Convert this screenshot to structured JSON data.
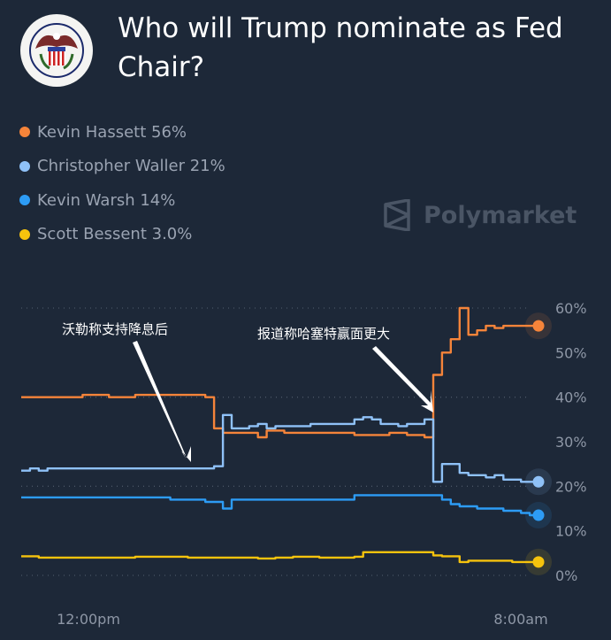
{
  "title": "Who will Trump nominate as Fed Chair?",
  "logo": {
    "name": "Board of Governors of the Federal Reserve System seal",
    "text": "BOARD OF GOVERNORS OF THE FEDERAL RESERVE SYSTEM"
  },
  "watermark": "Polymarket",
  "legend": [
    {
      "label": "Kevin Hassett 56%",
      "color": "#f5843a"
    },
    {
      "label": "Christopher Waller 21%",
      "color": "#8fc1f7"
    },
    {
      "label": "Kevin Warsh 14%",
      "color": "#2d9cf5"
    },
    {
      "label": "Scott Bessent 3.0%",
      "color": "#f6c30d"
    }
  ],
  "chart_data": {
    "type": "line",
    "xlabel": "",
    "ylabel": "",
    "x_tick_labels": [
      "12:00pm",
      "8:00am"
    ],
    "y_tick_labels": [
      "60%",
      "50%",
      "40%",
      "30%",
      "20%",
      "10%",
      "0%"
    ],
    "ylim": [
      0,
      60
    ],
    "grid": "dotted horizontal at 0%, 20%, 40%, 60%",
    "annotations": [
      "沃勒称支持降息后",
      "报道称哈塞特赢面更大"
    ],
    "series": [
      {
        "name": "Kevin Hassett",
        "color": "#f5843a",
        "values": [
          40,
          40,
          40,
          40,
          40,
          40,
          40,
          40.5,
          40.5,
          40.5,
          40,
          40,
          40,
          40.5,
          40.5,
          40.5,
          40.5,
          40.5,
          40.5,
          40.5,
          40.5,
          40,
          33,
          32,
          32,
          32,
          32,
          31,
          32.5,
          32.5,
          32,
          32,
          32,
          32,
          32,
          32,
          32,
          32,
          31.5,
          31.5,
          31.5,
          31.5,
          32,
          32,
          31.5,
          31.5,
          31,
          45,
          50,
          53,
          60,
          54,
          55,
          56,
          55.5,
          56,
          56,
          56,
          56,
          56
        ]
      },
      {
        "name": "Christopher Waller",
        "color": "#8fc1f7",
        "values": [
          23.5,
          24,
          23.5,
          24,
          24,
          24,
          24,
          24,
          24,
          24,
          24,
          24,
          24,
          24,
          24,
          24,
          24,
          24,
          24,
          24,
          24,
          24,
          24.5,
          36,
          33,
          33,
          33.5,
          34,
          33,
          33.5,
          33.5,
          33.5,
          33.5,
          34,
          34,
          34,
          34,
          34,
          35,
          35.5,
          35,
          34,
          34,
          33.5,
          34,
          34,
          35,
          21,
          25,
          25,
          23,
          22.5,
          22.5,
          22,
          22.5,
          21.5,
          21.5,
          21,
          21,
          21
        ]
      },
      {
        "name": "Kevin Warsh",
        "color": "#2d9cf5",
        "values": [
          17.5,
          17.5,
          17.5,
          17.5,
          17.5,
          17.5,
          17.5,
          17.5,
          17.5,
          17.5,
          17.5,
          17.5,
          17.5,
          17.5,
          17.5,
          17.5,
          17.5,
          17,
          17,
          17,
          17,
          16.5,
          16.5,
          15,
          17,
          17,
          17,
          17,
          17,
          17,
          17,
          17,
          17,
          17,
          17,
          17,
          17,
          17,
          18,
          18,
          18,
          18,
          18,
          18,
          18,
          18,
          18,
          18,
          17,
          16,
          15.5,
          15.5,
          15,
          15,
          15,
          14.5,
          14.5,
          14,
          13.5,
          13.5
        ]
      },
      {
        "name": "Scott Bessent",
        "color": "#f6c30d",
        "values": [
          4.3,
          4.3,
          4,
          4,
          4,
          4,
          4,
          4,
          4,
          4,
          4,
          4,
          4,
          4.2,
          4.2,
          4.2,
          4.2,
          4.2,
          4.2,
          4,
          4,
          4,
          4,
          4,
          4,
          4,
          4,
          3.8,
          3.8,
          4,
          4,
          4.2,
          4.2,
          4.2,
          4,
          4,
          4,
          4,
          4.2,
          5.2,
          5.2,
          5.2,
          5.2,
          5.2,
          5.2,
          5.2,
          5.2,
          4.5,
          4.3,
          4.3,
          3,
          3.3,
          3.3,
          3.3,
          3.3,
          3.3,
          3,
          3,
          3,
          3
        ]
      }
    ]
  }
}
